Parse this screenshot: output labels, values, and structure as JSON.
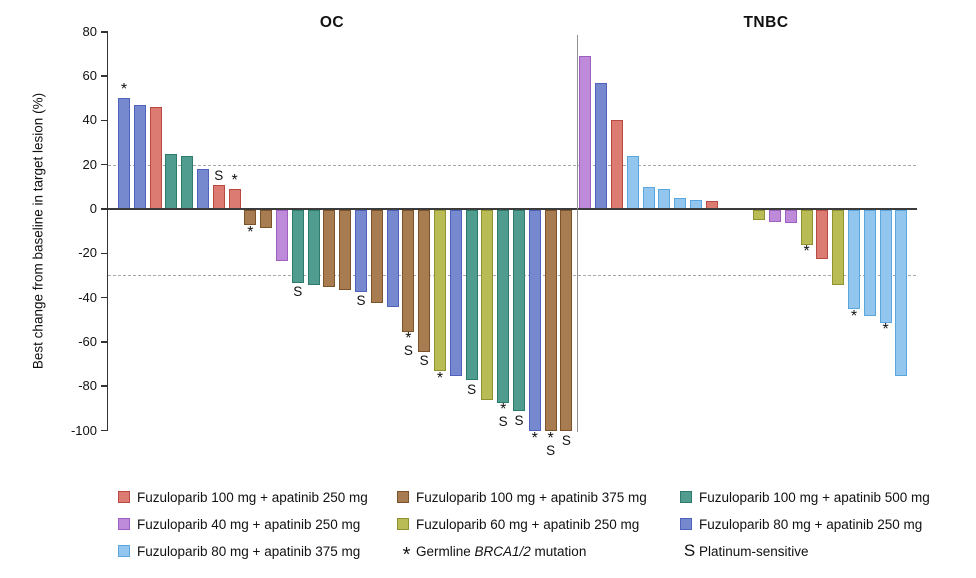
{
  "chart_data": {
    "type": "bar",
    "subtype": "waterfall",
    "title": "",
    "ylabel": "Best change from baseline in target lesion (%)",
    "ylim": [
      -100,
      80
    ],
    "yticks": [
      80,
      60,
      40,
      20,
      0,
      -20,
      -40,
      -60,
      -80,
      -100
    ],
    "reference_lines": [
      20,
      -30
    ],
    "grid": "dashed-reference-only",
    "legend_position": "bottom",
    "palette": {
      "red": {
        "fill": "#DC7B71",
        "stroke": "#B94A42"
      },
      "purple": {
        "fill": "#BD8BD9",
        "stroke": "#9E5FBF"
      },
      "lightblue": {
        "fill": "#92C6EE",
        "stroke": "#5CA6DE"
      },
      "brown": {
        "fill": "#A77C50",
        "stroke": "#7B5229"
      },
      "olive": {
        "fill": "#B9BB55",
        "stroke": "#8F9133"
      },
      "teal": {
        "fill": "#509D90",
        "stroke": "#2E7A6C"
      },
      "blue": {
        "fill": "#7689CE",
        "stroke": "#5062BC"
      }
    },
    "groups": {
      "red": "Fuzuloparib 100 mg + apatinib 250 mg",
      "purple": "Fuzuloparib 40 mg + apatinib 250 mg",
      "lightblue": "Fuzuloparib 80 mg + apatinib 375 mg",
      "brown": "Fuzuloparib 100 mg + apatinib 375 mg",
      "olive": "Fuzuloparib 60 mg + apatinib 250 mg",
      "teal": "Fuzuloparib 100 mg + apatinib 500 mg",
      "blue": "Fuzuloparib 80 mg + apatinib 250 mg"
    },
    "marks_legend": {
      "*": "Germline BRCA1/2 mutation",
      "S": "Platinum-sensitive"
    },
    "panels": [
      {
        "title": "OC",
        "bars": [
          {
            "v": 50,
            "g": "blue",
            "m": "*"
          },
          {
            "v": 47,
            "g": "blue",
            "m": ""
          },
          {
            "v": 46,
            "g": "red",
            "m": ""
          },
          {
            "v": 25,
            "g": "teal",
            "m": ""
          },
          {
            "v": 24,
            "g": "teal",
            "m": ""
          },
          {
            "v": 18,
            "g": "blue",
            "m": ""
          },
          {
            "v": 11,
            "g": "red",
            "m": "S"
          },
          {
            "v": 9,
            "g": "red",
            "m": "*"
          },
          {
            "v": -7,
            "g": "brown",
            "m": "*"
          },
          {
            "v": -8,
            "g": "brown",
            "m": ""
          },
          {
            "v": -23,
            "g": "purple",
            "m": ""
          },
          {
            "v": -33,
            "g": "teal",
            "m": "S"
          },
          {
            "v": -34,
            "g": "teal",
            "m": ""
          },
          {
            "v": -35,
            "g": "brown",
            "m": ""
          },
          {
            "v": -36,
            "g": "brown",
            "m": ""
          },
          {
            "v": -37,
            "g": "blue",
            "m": "S"
          },
          {
            "v": -42,
            "g": "brown",
            "m": ""
          },
          {
            "v": -44,
            "g": "blue",
            "m": ""
          },
          {
            "v": -55,
            "g": "brown",
            "m": "*S"
          },
          {
            "v": -64,
            "g": "brown",
            "m": "S"
          },
          {
            "v": -73,
            "g": "olive",
            "m": "*"
          },
          {
            "v": -75,
            "g": "blue",
            "m": ""
          },
          {
            "v": -77,
            "g": "teal",
            "m": "S"
          },
          {
            "v": -86,
            "g": "olive",
            "m": ""
          },
          {
            "v": -87,
            "g": "teal",
            "m": "*S"
          },
          {
            "v": -91,
            "g": "teal",
            "m": "S"
          },
          {
            "v": -100,
            "g": "blue",
            "m": "*"
          },
          {
            "v": -100,
            "g": "brown",
            "m": "*S"
          },
          {
            "v": -100,
            "g": "brown",
            "m": "S"
          }
        ]
      },
      {
        "title": "TNBC",
        "bars": [
          {
            "v": 69,
            "g": "purple",
            "m": ""
          },
          {
            "v": 57,
            "g": "blue",
            "m": ""
          },
          {
            "v": 40,
            "g": "red",
            "m": ""
          },
          {
            "v": 24,
            "g": "lightblue",
            "m": ""
          },
          {
            "v": 10,
            "g": "lightblue",
            "m": ""
          },
          {
            "v": 9,
            "g": "lightblue",
            "m": ""
          },
          {
            "v": 5,
            "g": "lightblue",
            "m": ""
          },
          {
            "v": 4,
            "g": "lightblue",
            "m": ""
          },
          {
            "v": 3.5,
            "g": "red",
            "m": ""
          },
          {
            "v": -4.5,
            "g": "olive",
            "m": "",
            "gap_before": 2
          },
          {
            "v": -5.5,
            "g": "purple",
            "m": ""
          },
          {
            "v": -6,
            "g": "purple",
            "m": ""
          },
          {
            "v": -16,
            "g": "olive",
            "m": "*"
          },
          {
            "v": -22,
            "g": "red",
            "m": ""
          },
          {
            "v": -34,
            "g": "olive",
            "m": ""
          },
          {
            "v": -45,
            "g": "lightblue",
            "m": "*"
          },
          {
            "v": -48,
            "g": "lightblue",
            "m": ""
          },
          {
            "v": -51,
            "g": "lightblue",
            "m": "*"
          },
          {
            "v": -75,
            "g": "lightblue",
            "m": ""
          }
        ]
      }
    ]
  },
  "legend": {
    "columns": [
      {
        "items": [
          {
            "type": "swatch",
            "group": "red",
            "label": "Fuzuloparib 100 mg + apatinib 250 mg"
          },
          {
            "type": "swatch",
            "group": "purple",
            "label": "Fuzuloparib 40 mg + apatinib 250 mg"
          },
          {
            "type": "swatch",
            "group": "lightblue",
            "label": "Fuzuloparib 80 mg + apatinib 375 mg"
          }
        ]
      },
      {
        "items": [
          {
            "type": "swatch",
            "group": "brown",
            "label": "Fuzuloparib 100 mg + apatinib 375 mg"
          },
          {
            "type": "swatch",
            "group": "olive",
            "label": "Fuzuloparib 60 mg + apatinib 250 mg"
          },
          {
            "type": "symbol",
            "symbol": "*",
            "label_pre": "Germline ",
            "label_italic": "BRCA1/2",
            "label_post": " mutation"
          }
        ]
      },
      {
        "items": [
          {
            "type": "swatch",
            "group": "teal",
            "label": "Fuzuloparib 100 mg + apatinib 500 mg"
          },
          {
            "type": "swatch",
            "group": "blue",
            "label": "Fuzuloparib 80 mg + apatinib 250 mg"
          },
          {
            "type": "symbol",
            "symbol": "S",
            "label": "Platinum-sensitive"
          }
        ]
      }
    ]
  }
}
